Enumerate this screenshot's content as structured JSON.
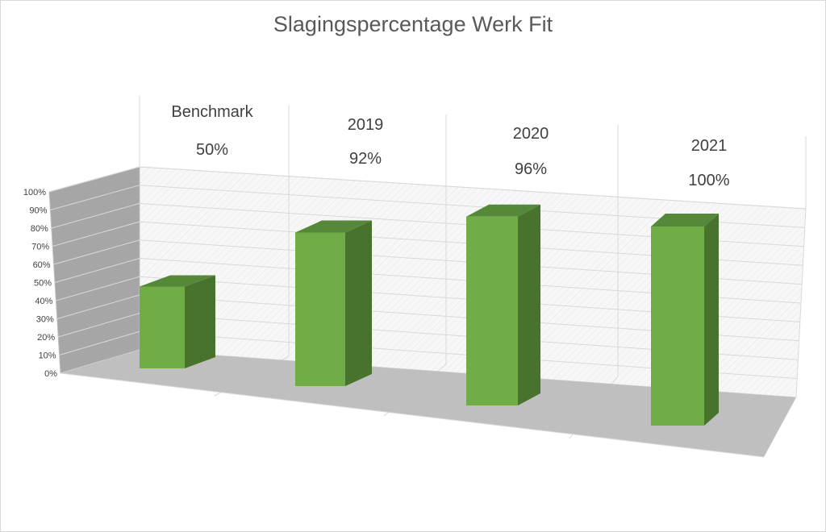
{
  "chart_data": {
    "type": "bar",
    "title": "Slagingspercentage Werk Fit",
    "categories": [
      "Benchmark",
      "2019",
      "2020",
      "2021"
    ],
    "values": [
      50,
      92,
      96,
      100
    ],
    "value_labels": [
      "50%",
      "92%",
      "96%",
      "100%"
    ],
    "y_ticks": [
      "0%",
      "10%",
      "20%",
      "30%",
      "40%",
      "50%",
      "60%",
      "70%",
      "80%",
      "90%",
      "100%"
    ],
    "ylim": [
      0,
      100
    ],
    "grid": true,
    "legend": "none",
    "style": "3d-column",
    "colors": {
      "front": "#70ad47",
      "side": "#47732d",
      "top": "#56883a"
    }
  }
}
